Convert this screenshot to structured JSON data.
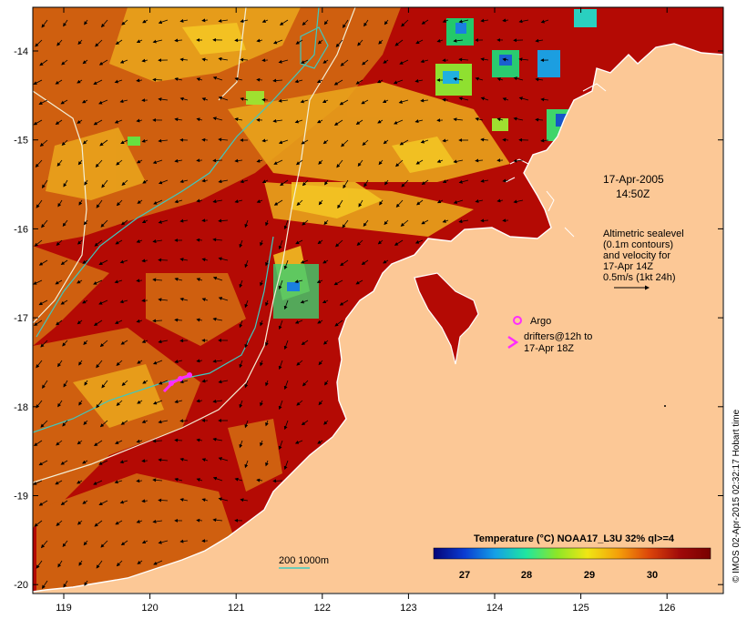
{
  "map": {
    "lon_ticks": [
      "119",
      "120",
      "121",
      "122",
      "123",
      "124",
      "125",
      "126"
    ],
    "lat_ticks": [
      "-14",
      "-15",
      "-16",
      "-17",
      "-18",
      "-19",
      "-20"
    ],
    "colors": {
      "land": "#fcc896",
      "sst_warm": "#b40a04",
      "sst_mid": "#d96a0c",
      "sst_cool": "#f2ac1a",
      "sst_cooler": "#f9d528",
      "contour_cyan": "#3ec9c0",
      "contour_white": "#f3efd6",
      "drifter": "#ff2cff",
      "coast": "#ffffff"
    }
  },
  "annotations": {
    "date": "17-Apr-2005",
    "time": "14:50Z",
    "altimetry_line1": "Altimetric sealevel",
    "altimetry_line2": "(0.1m contours)",
    "altimetry_line3": "and velocity for",
    "altimetry_line4": "17-Apr 14Z",
    "altimetry_line5": "0.5m/s (1kt 24h)",
    "argo_label": "Argo",
    "drifters_line1": "drifters@12h to",
    "drifters_line2": "17-Apr 18Z",
    "depth_label": "200  1000m",
    "credit": "© IMOS 02-Apr-2015 02:32:17 Hobart time"
  },
  "colorbar": {
    "title": "Temperature (°C) NOAA17_L3U 32% ql>=4",
    "ticks": [
      "27",
      "28",
      "29",
      "30"
    ],
    "stops": [
      "#040478",
      "#0a3cd2",
      "#14a0e6",
      "#1ee6a0",
      "#8ce628",
      "#f0e614",
      "#f5a00a",
      "#dc460a",
      "#a00a0a",
      "#780000"
    ]
  }
}
